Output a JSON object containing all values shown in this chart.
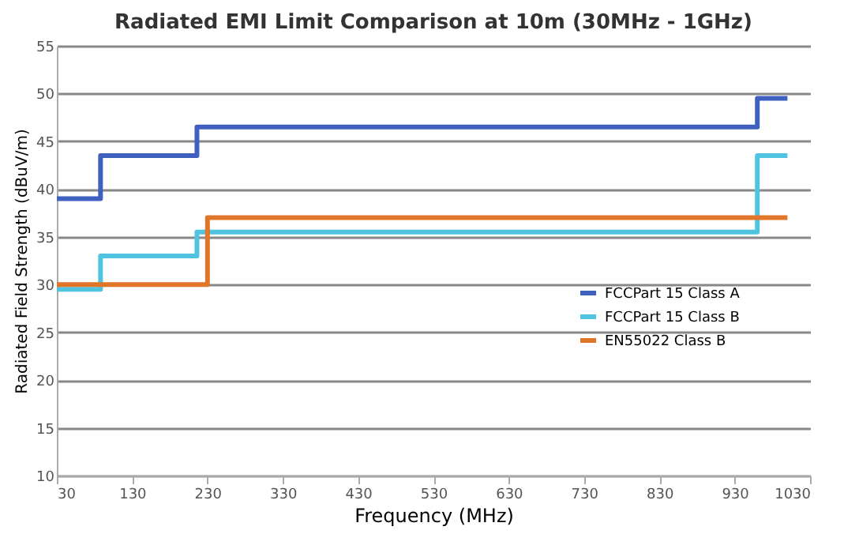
{
  "chart_data": {
    "type": "step",
    "title": "Radiated EMI Limit Comparison at 10m (30MHz - 1GHz)",
    "xlabel": "Frequency (MHz)",
    "ylabel": "Radiated Field Strength (dBuV/m)",
    "series": [
      {
        "name": "FCCPart 15 Class A",
        "color": "#4060c0",
        "x": [
          30,
          88,
          216,
          960,
          1000
        ],
        "values": [
          39,
          43.5,
          46.5,
          49.5,
          49.5
        ]
      },
      {
        "name": "FCCPart 15 Class B",
        "color": "#4fc3e0",
        "x": [
          30,
          88,
          216,
          960,
          1000
        ],
        "values": [
          29.5,
          33,
          35.5,
          43.5,
          43.5
        ]
      },
      {
        "name": "EN55022 Class B",
        "color": "#e0762a",
        "x": [
          30,
          230,
          1000
        ],
        "values": [
          30,
          37,
          37
        ]
      }
    ],
    "xlim": [
      30,
      1030
    ],
    "xticks": [
      30,
      130,
      230,
      330,
      430,
      530,
      630,
      730,
      830,
      930,
      1030
    ],
    "ylim": [
      10,
      55
    ],
    "yticks": [
      10,
      15,
      20,
      25,
      30,
      35,
      40,
      45,
      50,
      55
    ],
    "grid": "y",
    "legend": "right",
    "line_style": "solid",
    "marker": "none"
  }
}
